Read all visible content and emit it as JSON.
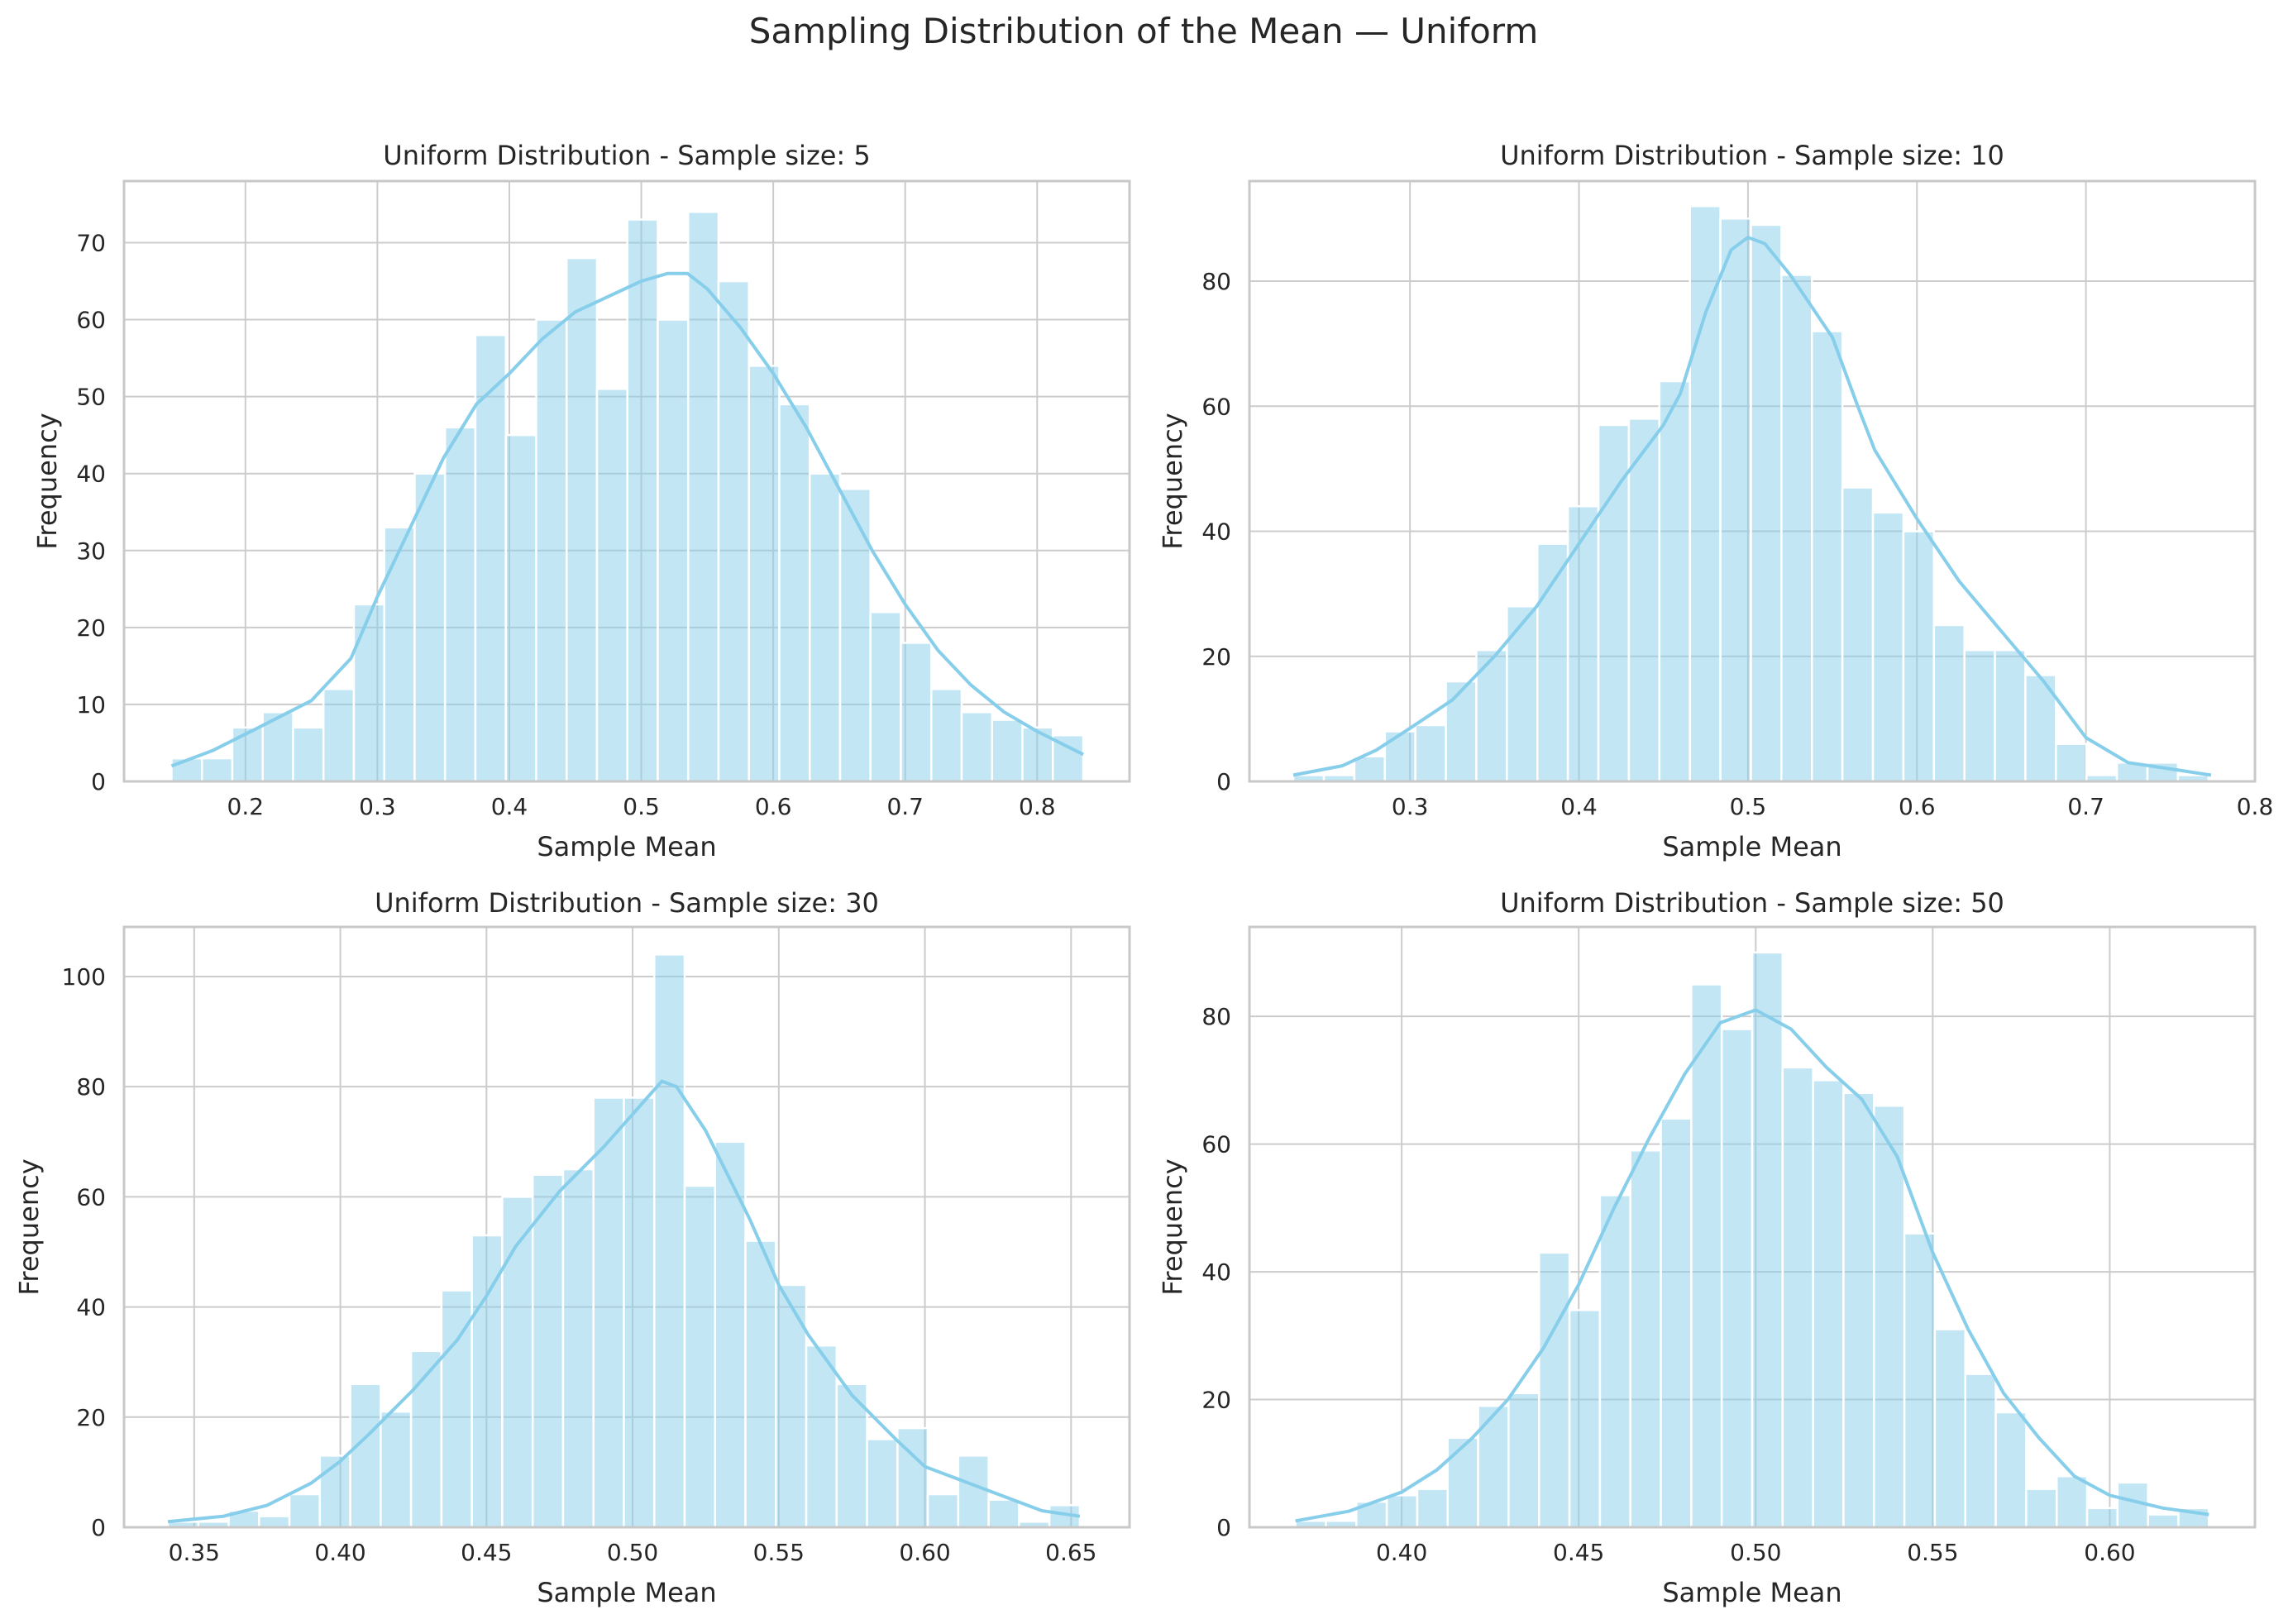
{
  "figure": {
    "title": "Sampling Distribution of the Mean — Uniform"
  },
  "chart_data": [
    {
      "type": "bar",
      "title": "Uniform Distribution - Sample size: 5",
      "xlabel": "Sample Mean",
      "ylabel": "Frequency",
      "xlim": [
        0.108,
        0.87
      ],
      "ylim": [
        0,
        78
      ],
      "xticks": [
        0.2,
        0.3,
        0.4,
        0.5,
        0.6,
        0.7,
        0.8
      ],
      "xtick_labels": [
        "0.2",
        "0.3",
        "0.4",
        "0.5",
        "0.6",
        "0.7",
        "0.8"
      ],
      "yticks": [
        0,
        10,
        20,
        30,
        40,
        50,
        60,
        70
      ],
      "ytick_labels": [
        "0",
        "10",
        "20",
        "30",
        "40",
        "50",
        "60",
        "70"
      ],
      "bin_start": 0.144,
      "bin_width": 0.02303,
      "values": [
        3,
        3,
        7,
        9,
        7,
        12,
        23,
        33,
        40,
        46,
        58,
        45,
        60,
        68,
        51,
        73,
        60,
        74,
        65,
        54,
        49,
        40,
        38,
        22,
        18,
        12,
        9,
        8,
        7,
        6
      ],
      "kde": [
        [
          0.144,
          2
        ],
        [
          0.175,
          4
        ],
        [
          0.21,
          7
        ],
        [
          0.25,
          10.5
        ],
        [
          0.28,
          16
        ],
        [
          0.3,
          24
        ],
        [
          0.325,
          33
        ],
        [
          0.35,
          42
        ],
        [
          0.375,
          49
        ],
        [
          0.4,
          53
        ],
        [
          0.425,
          57.5
        ],
        [
          0.45,
          61
        ],
        [
          0.475,
          63
        ],
        [
          0.5,
          65
        ],
        [
          0.52,
          66
        ],
        [
          0.535,
          66
        ],
        [
          0.55,
          64
        ],
        [
          0.575,
          59
        ],
        [
          0.6,
          53
        ],
        [
          0.625,
          46
        ],
        [
          0.65,
          38
        ],
        [
          0.675,
          30
        ],
        [
          0.7,
          23
        ],
        [
          0.725,
          17
        ],
        [
          0.75,
          12.5
        ],
        [
          0.775,
          9
        ],
        [
          0.8,
          6.5
        ],
        [
          0.835,
          3.5
        ]
      ],
      "grid": true,
      "color": "#87ceeb"
    },
    {
      "type": "bar",
      "title": "Uniform Distribution - Sample size: 10",
      "xlabel": "Sample Mean",
      "ylabel": "Frequency",
      "xlim": [
        0.205,
        0.8
      ],
      "ylim": [
        0,
        96
      ],
      "xticks": [
        0.3,
        0.4,
        0.5,
        0.6,
        0.7,
        0.8
      ],
      "xtick_labels": [
        "0.3",
        "0.4",
        "0.5",
        "0.6",
        "0.7",
        "0.8"
      ],
      "yticks": [
        0,
        20,
        40,
        60,
        80
      ],
      "ytick_labels": [
        "0",
        "20",
        "40",
        "60",
        "80"
      ],
      "bin_start": 0.231,
      "bin_width": 0.01805,
      "values": [
        1,
        1,
        4,
        8,
        9,
        16,
        21,
        28,
        38,
        44,
        57,
        58,
        64,
        92,
        90,
        89,
        81,
        72,
        47,
        43,
        40,
        25,
        21,
        21,
        17,
        6,
        1,
        3,
        3,
        1
      ],
      "kde": [
        [
          0.231,
          1
        ],
        [
          0.26,
          2.5
        ],
        [
          0.28,
          5
        ],
        [
          0.3,
          8.5
        ],
        [
          0.325,
          13
        ],
        [
          0.35,
          20
        ],
        [
          0.375,
          28
        ],
        [
          0.4,
          38
        ],
        [
          0.425,
          48
        ],
        [
          0.45,
          57
        ],
        [
          0.46,
          62
        ],
        [
          0.475,
          75
        ],
        [
          0.49,
          85
        ],
        [
          0.5,
          87
        ],
        [
          0.51,
          86
        ],
        [
          0.525,
          81
        ],
        [
          0.55,
          71
        ],
        [
          0.565,
          60
        ],
        [
          0.575,
          53
        ],
        [
          0.6,
          42
        ],
        [
          0.625,
          32
        ],
        [
          0.65,
          24
        ],
        [
          0.675,
          16
        ],
        [
          0.7,
          7
        ],
        [
          0.725,
          3
        ],
        [
          0.75,
          2
        ],
        [
          0.774,
          1
        ]
      ],
      "grid": true,
      "color": "#87ceeb"
    },
    {
      "type": "bar",
      "title": "Uniform Distribution - Sample size: 30",
      "xlabel": "Sample Mean",
      "ylabel": "Frequency",
      "xlim": [
        0.326,
        0.67
      ],
      "ylim": [
        0,
        109
      ],
      "xticks": [
        0.35,
        0.4,
        0.45,
        0.5,
        0.55,
        0.6,
        0.65
      ],
      "xtick_labels": [
        "0.35",
        "0.40",
        "0.45",
        "0.50",
        "0.55",
        "0.60",
        "0.65"
      ],
      "yticks": [
        0,
        20,
        40,
        60,
        80,
        100
      ],
      "ytick_labels": [
        "0",
        "20",
        "40",
        "60",
        "80",
        "100"
      ],
      "bin_start": 0.341,
      "bin_width": 0.0104,
      "values": [
        1,
        1,
        3,
        2,
        6,
        13,
        26,
        21,
        32,
        43,
        53,
        60,
        64,
        65,
        78,
        78,
        104,
        62,
        70,
        52,
        44,
        33,
        26,
        16,
        18,
        6,
        13,
        5,
        1,
        4
      ],
      "kde": [
        [
          0.341,
          1
        ],
        [
          0.36,
          2
        ],
        [
          0.375,
          4
        ],
        [
          0.39,
          8
        ],
        [
          0.4,
          12
        ],
        [
          0.41,
          17
        ],
        [
          0.425,
          25
        ],
        [
          0.44,
          34
        ],
        [
          0.45,
          42
        ],
        [
          0.46,
          51
        ],
        [
          0.475,
          61
        ],
        [
          0.49,
          69
        ],
        [
          0.5,
          75
        ],
        [
          0.51,
          81
        ],
        [
          0.515,
          80
        ],
        [
          0.525,
          72
        ],
        [
          0.54,
          56
        ],
        [
          0.55,
          44
        ],
        [
          0.56,
          35
        ],
        [
          0.575,
          24
        ],
        [
          0.59,
          16
        ],
        [
          0.6,
          11
        ],
        [
          0.625,
          6
        ],
        [
          0.64,
          3
        ],
        [
          0.653,
          2
        ]
      ],
      "grid": true,
      "color": "#87ceeb"
    },
    {
      "type": "bar",
      "title": "Uniform Distribution - Sample size: 50",
      "xlabel": "Sample Mean",
      "ylabel": "Frequency",
      "xlim": [
        0.357,
        0.641
      ],
      "ylim": [
        0,
        94
      ],
      "xticks": [
        0.4,
        0.45,
        0.5,
        0.55,
        0.6
      ],
      "xtick_labels": [
        "0.40",
        "0.45",
        "0.50",
        "0.55",
        "0.60"
      ],
      "yticks": [
        0,
        20,
        40,
        60,
        80
      ],
      "ytick_labels": [
        "0",
        "20",
        "40",
        "60",
        "80"
      ],
      "bin_start": 0.37,
      "bin_width": 0.0086,
      "values": [
        1,
        1,
        4,
        5,
        6,
        14,
        19,
        21,
        43,
        34,
        52,
        59,
        64,
        85,
        78,
        90,
        72,
        70,
        68,
        66,
        46,
        31,
        24,
        18,
        6,
        8,
        3,
        7,
        2,
        3
      ],
      "kde": [
        [
          0.37,
          1
        ],
        [
          0.385,
          2.5
        ],
        [
          0.4,
          5.5
        ],
        [
          0.41,
          9
        ],
        [
          0.42,
          14
        ],
        [
          0.43,
          20
        ],
        [
          0.44,
          28
        ],
        [
          0.45,
          38
        ],
        [
          0.46,
          50
        ],
        [
          0.47,
          61
        ],
        [
          0.48,
          71
        ],
        [
          0.49,
          79
        ],
        [
          0.5,
          81
        ],
        [
          0.51,
          78
        ],
        [
          0.52,
          72
        ],
        [
          0.53,
          67
        ],
        [
          0.54,
          58
        ],
        [
          0.55,
          43
        ],
        [
          0.56,
          31
        ],
        [
          0.57,
          21
        ],
        [
          0.58,
          14
        ],
        [
          0.59,
          8
        ],
        [
          0.6,
          5
        ],
        [
          0.615,
          3
        ],
        [
          0.628,
          2
        ]
      ],
      "grid": true,
      "color": "#87ceeb"
    }
  ]
}
